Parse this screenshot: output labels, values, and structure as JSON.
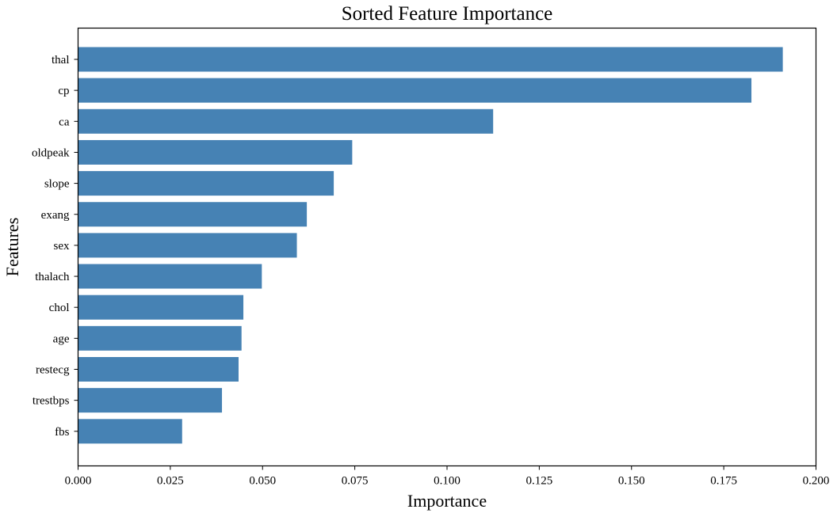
{
  "chart_data": {
    "type": "bar",
    "orientation": "horizontal",
    "title": "Sorted Feature Importance",
    "xlabel": "Importance",
    "ylabel": "Features",
    "xlim": [
      0.0,
      0.2
    ],
    "xticks": [
      "0.000",
      "0.025",
      "0.050",
      "0.075",
      "0.100",
      "0.125",
      "0.150",
      "0.175",
      "0.200"
    ],
    "grid": false,
    "bar_color": "#4682b4",
    "categories": [
      "thal",
      "cp",
      "ca",
      "oldpeak",
      "slope",
      "exang",
      "sex",
      "thalach",
      "chol",
      "age",
      "restecg",
      "trestbps",
      "fbs"
    ],
    "values": [
      0.191,
      0.1825,
      0.1125,
      0.0743,
      0.0693,
      0.062,
      0.0593,
      0.0498,
      0.0448,
      0.0443,
      0.0435,
      0.039,
      0.0282
    ]
  }
}
